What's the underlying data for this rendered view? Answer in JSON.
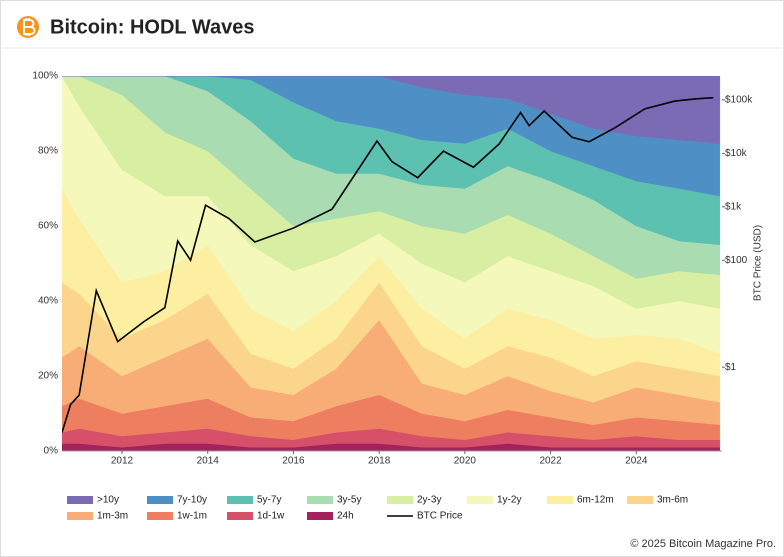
{
  "chart_data": {
    "type": "area",
    "title": "Bitcoin: HODL Waves",
    "footer": "© 2025 Bitcoin Magazine Pro.",
    "y2label": "BTC Price (USD)",
    "legend": "bottom",
    "grid": false,
    "xlim": [
      2010.6,
      2026
    ],
    "xticks": [
      2012,
      2014,
      2016,
      2018,
      2020,
      2022,
      2024
    ],
    "ylim": [
      0,
      100
    ],
    "yticks": [
      {
        "value": 0,
        "label": "0%"
      },
      {
        "value": 20,
        "label": "20%"
      },
      {
        "value": 40,
        "label": "40%"
      },
      {
        "value": 60,
        "label": "60%"
      },
      {
        "value": 80,
        "label": "80%"
      },
      {
        "value": 100,
        "label": "100%"
      }
    ],
    "y2scale": "log",
    "y2lim": [
      0.027,
      280000
    ],
    "y2ticks": [
      {
        "value": 1,
        "label": "$1"
      },
      {
        "value": 100,
        "label": "$100"
      },
      {
        "value": 1000,
        "label": "$1k"
      },
      {
        "value": 10000,
        "label": "$10k"
      },
      {
        "value": 100000,
        "label": "$100k"
      }
    ],
    "x": [
      2010.6,
      2011,
      2012,
      2013,
      2014,
      2015,
      2016,
      2017,
      2018,
      2019,
      2020,
      2021,
      2022,
      2023,
      2024,
      2025,
      2025.95
    ],
    "series": [
      {
        "name": ">10y",
        "color": "#7b6bb5",
        "values": [
          0,
          0,
          0,
          0,
          0,
          0,
          0,
          0,
          0,
          3,
          5,
          6,
          10,
          14,
          16,
          17,
          18
        ]
      },
      {
        "name": "7y-10y",
        "color": "#4e90c5",
        "values": [
          0,
          0,
          0,
          0,
          0,
          1,
          7,
          12,
          14,
          14,
          13,
          8,
          10,
          10,
          12,
          13,
          14
        ]
      },
      {
        "name": "5y-7y",
        "color": "#5cc1b1",
        "values": [
          0,
          0,
          0,
          0,
          4,
          11,
          15,
          14,
          12,
          12,
          12,
          10,
          8,
          9,
          12,
          14,
          13
        ]
      },
      {
        "name": "3y-5y",
        "color": "#a9dcb1",
        "values": [
          0,
          0,
          5,
          15,
          16,
          18,
          18,
          12,
          10,
          11,
          12,
          13,
          14,
          15,
          14,
          8,
          8
        ]
      },
      {
        "name": "2y-3y",
        "color": "#d8eea2",
        "values": [
          0,
          8,
          20,
          17,
          12,
          15,
          12,
          10,
          6,
          10,
          13,
          11,
          10,
          8,
          8,
          8,
          9
        ]
      },
      {
        "name": "1y-2y",
        "color": "#f4f8ba",
        "values": [
          30,
          30,
          30,
          20,
          13,
          17,
          16,
          12,
          6,
          12,
          15,
          14,
          13,
          14,
          7,
          10,
          12
        ]
      },
      {
        "name": "6m-12m",
        "color": "#fcefa2",
        "values": [
          25,
          20,
          15,
          13,
          13,
          12,
          10,
          10,
          7,
          10,
          8,
          10,
          10,
          10,
          7,
          8,
          6
        ]
      },
      {
        "name": "3m-6m",
        "color": "#fcd58c",
        "values": [
          20,
          14,
          10,
          10,
          12,
          9,
          7,
          8,
          10,
          10,
          7,
          8,
          9,
          7,
          7,
          7,
          7
        ]
      },
      {
        "name": "1m-3m",
        "color": "#f8ad76",
        "values": [
          13,
          14,
          10,
          13,
          16,
          8,
          7,
          10,
          20,
          8,
          7,
          9,
          7,
          6,
          8,
          7,
          6
        ]
      },
      {
        "name": "1w-1m",
        "color": "#ee7e60",
        "values": [
          7,
          8,
          6,
          7,
          8,
          5,
          5,
          7,
          9,
          6,
          5,
          6,
          5,
          4,
          5,
          5,
          4
        ]
      },
      {
        "name": "1d-1w",
        "color": "#d6506a",
        "values": [
          3,
          4,
          3,
          3,
          4,
          3,
          2,
          3,
          4,
          3,
          2,
          3,
          3,
          2,
          3,
          2,
          2
        ]
      },
      {
        "name": "24h",
        "color": "#a3225b",
        "values": [
          2,
          2,
          1,
          2,
          2,
          1,
          1,
          2,
          2,
          1,
          1,
          2,
          1,
          1,
          1,
          1,
          1
        ]
      },
      {
        "name": "BTC Price",
        "color": "#000000",
        "type": "line",
        "axis": "y2",
        "x": [
          2010.6,
          2010.8,
          2011.0,
          2011.4,
          2011.9,
          2012.5,
          2013.0,
          2013.3,
          2013.6,
          2013.95,
          2014.5,
          2015.1,
          2016.0,
          2016.9,
          2017.95,
          2018.3,
          2018.9,
          2019.5,
          2020.2,
          2020.8,
          2021.3,
          2021.5,
          2021.85,
          2022.5,
          2022.9,
          2023.5,
          2024.2,
          2024.9,
          2025.4,
          2025.8
        ],
        "values": [
          0.06,
          0.2,
          0.3,
          27,
          3,
          7,
          13,
          230,
          100,
          1070,
          600,
          220,
          400,
          900,
          17000,
          7000,
          3500,
          11000,
          5500,
          15000,
          58000,
          33000,
          62000,
          20000,
          16500,
          30000,
          68000,
          95000,
          105000,
          110000
        ]
      }
    ]
  }
}
